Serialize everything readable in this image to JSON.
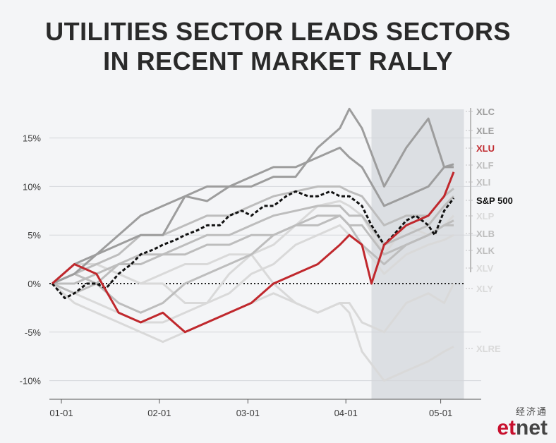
{
  "title_line1": "UTILITIES SECTOR LEADS SECTORS",
  "title_line2": "IN RECENT MARKET RALLY",
  "brand": {
    "chinese": "经济通",
    "logo_et": "et",
    "logo_net": "net"
  },
  "colors": {
    "xlu": "#c0282d",
    "sp500": "#111111",
    "dark_gray": "#9d9d9d",
    "mid_gray": "#bdbdbd",
    "light_gray": "#d9d9d9",
    "shade": "#dcdfe3"
  },
  "chart_data": {
    "type": "line",
    "x_ticks": [
      "01-01",
      "02-01",
      "03-01",
      "04-01",
      "05-01"
    ],
    "y_ticks": [
      "15%",
      "10%",
      "5%",
      "0%",
      "-5%",
      "-10%"
    ],
    "ylim": [
      -12,
      18
    ],
    "grid": true,
    "shaded_period": [
      "04-12",
      "05-05"
    ],
    "series": [
      {
        "name": "XLC",
        "style": "dark_gray",
        "points": [
          [
            "01-01",
            0
          ],
          [
            "01-08",
            2
          ],
          [
            "01-15",
            3
          ],
          [
            "01-22",
            4
          ],
          [
            "01-29",
            5
          ],
          [
            "02-05",
            5
          ],
          [
            "02-12",
            9
          ],
          [
            "02-19",
            8.5
          ],
          [
            "02-26",
            10
          ],
          [
            "03-05",
            10
          ],
          [
            "03-12",
            11
          ],
          [
            "03-19",
            11
          ],
          [
            "03-26",
            14
          ],
          [
            "04-02",
            16
          ],
          [
            "04-05",
            18
          ],
          [
            "04-09",
            16
          ],
          [
            "04-16",
            10
          ],
          [
            "04-23",
            14
          ],
          [
            "04-30",
            17
          ],
          [
            "05-05",
            12
          ],
          [
            "05-08",
            12
          ]
        ]
      },
      {
        "name": "XLE",
        "style": "dark_gray",
        "points": [
          [
            "01-01",
            0
          ],
          [
            "01-08",
            1
          ],
          [
            "01-15",
            3
          ],
          [
            "01-22",
            5
          ],
          [
            "01-29",
            7
          ],
          [
            "02-05",
            8
          ],
          [
            "02-12",
            9
          ],
          [
            "02-19",
            10
          ],
          [
            "02-26",
            10
          ],
          [
            "03-05",
            11
          ],
          [
            "03-12",
            12
          ],
          [
            "03-19",
            12
          ],
          [
            "03-26",
            13
          ],
          [
            "04-02",
            14
          ],
          [
            "04-05",
            13
          ],
          [
            "04-09",
            12
          ],
          [
            "04-16",
            8
          ],
          [
            "04-23",
            9
          ],
          [
            "04-30",
            10
          ],
          [
            "05-05",
            12
          ],
          [
            "05-08",
            12.3
          ]
        ]
      },
      {
        "name": "XLU",
        "style": "xlu",
        "points": [
          [
            "01-01",
            0
          ],
          [
            "01-08",
            2
          ],
          [
            "01-15",
            1
          ],
          [
            "01-22",
            -3
          ],
          [
            "01-29",
            -4
          ],
          [
            "02-05",
            -3
          ],
          [
            "02-12",
            -5
          ],
          [
            "02-19",
            -4
          ],
          [
            "02-26",
            -3
          ],
          [
            "03-05",
            -2
          ],
          [
            "03-12",
            0
          ],
          [
            "03-19",
            1
          ],
          [
            "03-26",
            2
          ],
          [
            "04-02",
            4
          ],
          [
            "04-05",
            5
          ],
          [
            "04-09",
            4
          ],
          [
            "04-12",
            0
          ],
          [
            "04-16",
            4
          ],
          [
            "04-23",
            6
          ],
          [
            "04-30",
            7
          ],
          [
            "05-05",
            9
          ],
          [
            "05-08",
            11.5
          ]
        ]
      },
      {
        "name": "XLF",
        "style": "mid_gray",
        "points": [
          [
            "01-01",
            0
          ],
          [
            "01-08",
            1
          ],
          [
            "01-15",
            2
          ],
          [
            "01-22",
            3
          ],
          [
            "01-29",
            5
          ],
          [
            "02-05",
            5
          ],
          [
            "02-12",
            6
          ],
          [
            "02-19",
            7
          ],
          [
            "02-26",
            7
          ],
          [
            "03-05",
            8
          ],
          [
            "03-12",
            9
          ],
          [
            "03-19",
            9.5
          ],
          [
            "03-26",
            10
          ],
          [
            "04-02",
            10
          ],
          [
            "04-05",
            9.5
          ],
          [
            "04-09",
            9
          ],
          [
            "04-16",
            6
          ],
          [
            "04-23",
            7
          ],
          [
            "04-30",
            7
          ],
          [
            "05-05",
            9
          ],
          [
            "05-08",
            9.8
          ]
        ]
      },
      {
        "name": "XLI",
        "style": "mid_gray",
        "points": [
          [
            "01-01",
            0
          ],
          [
            "01-08",
            0
          ],
          [
            "01-15",
            1
          ],
          [
            "01-22",
            2
          ],
          [
            "01-29",
            3
          ],
          [
            "02-05",
            3
          ],
          [
            "02-12",
            4
          ],
          [
            "02-19",
            5
          ],
          [
            "02-26",
            5
          ],
          [
            "03-05",
            6
          ],
          [
            "03-12",
            7
          ],
          [
            "03-19",
            7.5
          ],
          [
            "03-26",
            8
          ],
          [
            "04-02",
            8
          ],
          [
            "04-05",
            7
          ],
          [
            "04-09",
            7
          ],
          [
            "04-16",
            4
          ],
          [
            "04-23",
            5
          ],
          [
            "04-30",
            6
          ],
          [
            "05-05",
            8
          ],
          [
            "05-08",
            9
          ]
        ]
      },
      {
        "name": "S&P 500",
        "style": "sp500",
        "points": [
          [
            "01-01",
            0
          ],
          [
            "01-05",
            -1.5
          ],
          [
            "01-08",
            -1
          ],
          [
            "01-12",
            0
          ],
          [
            "01-15",
            0
          ],
          [
            "01-18",
            -0.5
          ],
          [
            "01-22",
            1
          ],
          [
            "01-26",
            2
          ],
          [
            "01-29",
            3
          ],
          [
            "02-02",
            3.5
          ],
          [
            "02-05",
            4
          ],
          [
            "02-09",
            4.5
          ],
          [
            "02-12",
            5
          ],
          [
            "02-16",
            5.5
          ],
          [
            "02-19",
            6
          ],
          [
            "02-23",
            6
          ],
          [
            "02-26",
            7
          ],
          [
            "03-02",
            7.5
          ],
          [
            "03-05",
            7
          ],
          [
            "03-09",
            8
          ],
          [
            "03-12",
            8
          ],
          [
            "03-16",
            9
          ],
          [
            "03-19",
            9.5
          ],
          [
            "03-23",
            9
          ],
          [
            "03-26",
            9
          ],
          [
            "03-30",
            9.5
          ],
          [
            "04-02",
            9
          ],
          [
            "04-05",
            9
          ],
          [
            "04-09",
            8
          ],
          [
            "04-12",
            6
          ],
          [
            "04-16",
            4
          ],
          [
            "04-19",
            5
          ],
          [
            "04-23",
            6.5
          ],
          [
            "04-26",
            7
          ],
          [
            "04-30",
            6
          ],
          [
            "05-02",
            5
          ],
          [
            "05-05",
            7.5
          ],
          [
            "05-08",
            8.8
          ]
        ]
      },
      {
        "name": "XLP",
        "style": "light_gray",
        "points": [
          [
            "01-01",
            0
          ],
          [
            "01-08",
            2
          ],
          [
            "01-15",
            2
          ],
          [
            "01-22",
            1
          ],
          [
            "01-29",
            0
          ],
          [
            "02-05",
            0
          ],
          [
            "02-12",
            -2
          ],
          [
            "02-19",
            -2
          ],
          [
            "02-26",
            1
          ],
          [
            "03-05",
            3
          ],
          [
            "03-12",
            4
          ],
          [
            "03-19",
            6
          ],
          [
            "03-26",
            8
          ],
          [
            "04-02",
            8.5
          ],
          [
            "04-05",
            8
          ],
          [
            "04-09",
            7
          ],
          [
            "04-16",
            3
          ],
          [
            "04-23",
            6
          ],
          [
            "04-30",
            5
          ],
          [
            "05-05",
            6
          ],
          [
            "05-08",
            7
          ]
        ]
      },
      {
        "name": "XLB",
        "style": "mid_gray",
        "points": [
          [
            "01-01",
            0
          ],
          [
            "01-08",
            -1
          ],
          [
            "01-15",
            0
          ],
          [
            "01-22",
            2
          ],
          [
            "01-29",
            2
          ],
          [
            "02-05",
            3
          ],
          [
            "02-12",
            3
          ],
          [
            "02-19",
            4
          ],
          [
            "02-26",
            4
          ],
          [
            "03-05",
            5
          ],
          [
            "03-12",
            5
          ],
          [
            "03-19",
            6
          ],
          [
            "03-26",
            6
          ],
          [
            "04-02",
            7
          ],
          [
            "04-05",
            6
          ],
          [
            "04-09",
            6
          ],
          [
            "04-16",
            3
          ],
          [
            "04-23",
            4
          ],
          [
            "04-30",
            5
          ],
          [
            "05-05",
            6
          ],
          [
            "05-08",
            6.5
          ]
        ]
      },
      {
        "name": "XLK",
        "style": "mid_gray",
        "points": [
          [
            "01-01",
            0
          ],
          [
            "01-08",
            1
          ],
          [
            "01-15",
            0
          ],
          [
            "01-22",
            -2
          ],
          [
            "01-29",
            -3
          ],
          [
            "02-05",
            -2
          ],
          [
            "02-12",
            0
          ],
          [
            "02-19",
            1
          ],
          [
            "02-26",
            2
          ],
          [
            "03-05",
            3
          ],
          [
            "03-12",
            5
          ],
          [
            "03-19",
            6
          ],
          [
            "03-26",
            7
          ],
          [
            "04-02",
            7
          ],
          [
            "04-05",
            6
          ],
          [
            "04-09",
            4
          ],
          [
            "04-16",
            2
          ],
          [
            "04-23",
            4
          ],
          [
            "04-30",
            5
          ],
          [
            "05-05",
            6
          ],
          [
            "05-08",
            6
          ]
        ]
      },
      {
        "name": "XLV",
        "style": "light_gray",
        "points": [
          [
            "01-01",
            0
          ],
          [
            "01-08",
            -1
          ],
          [
            "01-15",
            -2
          ],
          [
            "01-22",
            -3
          ],
          [
            "01-29",
            -4
          ],
          [
            "02-05",
            -4
          ],
          [
            "02-12",
            -3
          ],
          [
            "02-19",
            -2
          ],
          [
            "02-26",
            -1
          ],
          [
            "03-05",
            1
          ],
          [
            "03-12",
            2
          ],
          [
            "03-19",
            4
          ],
          [
            "03-26",
            5
          ],
          [
            "04-02",
            6
          ],
          [
            "04-05",
            5
          ],
          [
            "04-09",
            4
          ],
          [
            "04-16",
            1
          ],
          [
            "04-23",
            3
          ],
          [
            "04-30",
            4
          ],
          [
            "05-05",
            4.5
          ],
          [
            "05-08",
            5
          ]
        ]
      },
      {
        "name": "XLY",
        "style": "light_gray",
        "points": [
          [
            "01-01",
            0
          ],
          [
            "01-08",
            -2
          ],
          [
            "01-15",
            -3
          ],
          [
            "01-22",
            -4
          ],
          [
            "01-29",
            -5
          ],
          [
            "02-05",
            -6
          ],
          [
            "02-12",
            -5
          ],
          [
            "02-19",
            -4
          ],
          [
            "02-26",
            -3
          ],
          [
            "03-05",
            -2
          ],
          [
            "03-12",
            -1
          ],
          [
            "03-19",
            -2
          ],
          [
            "03-26",
            -3
          ],
          [
            "04-02",
            -2
          ],
          [
            "04-05",
            -2
          ],
          [
            "04-09",
            -4
          ],
          [
            "04-16",
            -5
          ],
          [
            "04-23",
            -2
          ],
          [
            "04-30",
            -1
          ],
          [
            "05-05",
            -2
          ],
          [
            "05-08",
            0
          ]
        ]
      },
      {
        "name": "XLRE",
        "style": "light_gray",
        "points": [
          [
            "01-01",
            0
          ],
          [
            "01-08",
            1
          ],
          [
            "01-15",
            2
          ],
          [
            "01-22",
            1
          ],
          [
            "01-29",
            0
          ],
          [
            "02-05",
            1
          ],
          [
            "02-12",
            2
          ],
          [
            "02-19",
            2
          ],
          [
            "02-26",
            3
          ],
          [
            "03-05",
            3
          ],
          [
            "03-12",
            0
          ],
          [
            "03-19",
            -2
          ],
          [
            "03-26",
            -3
          ],
          [
            "04-02",
            -2
          ],
          [
            "04-05",
            -3
          ],
          [
            "04-09",
            -7
          ],
          [
            "04-16",
            -10
          ],
          [
            "04-23",
            -9
          ],
          [
            "04-30",
            -8
          ],
          [
            "05-05",
            -7
          ],
          [
            "05-08",
            -6.5
          ]
        ]
      }
    ],
    "labels": [
      {
        "text": "XLC",
        "style": "dark_gray"
      },
      {
        "text": "XLE",
        "style": "dark_gray"
      },
      {
        "text": "XLU",
        "style": "xlu"
      },
      {
        "text": "XLF",
        "style": "mid_gray"
      },
      {
        "text": "XLI",
        "style": "mid_gray"
      },
      {
        "text": "S&P 500",
        "style": "sp500"
      },
      {
        "text": "XLP",
        "style": "light_gray"
      },
      {
        "text": "XLB",
        "style": "mid_gray"
      },
      {
        "text": "XLK",
        "style": "mid_gray"
      },
      {
        "text": "XLV",
        "style": "light_gray"
      },
      {
        "text": "XLY",
        "style": "light_gray"
      },
      {
        "text": "XLRE",
        "style": "light_gray"
      }
    ]
  }
}
